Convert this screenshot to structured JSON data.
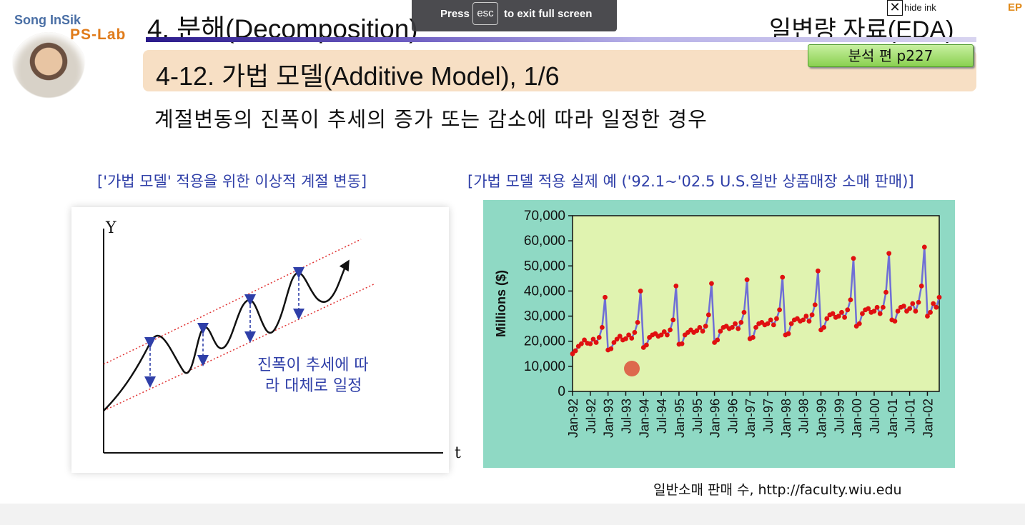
{
  "logo": {
    "name": "Song InSik",
    "lab": "PS-Lab"
  },
  "header": {
    "title": "4. 분해(Decomposition)",
    "right_title": "일변량 자료(EDA)",
    "section_title": "4-12. 가법 모델(Additive Model), 1/6",
    "page_ref": "분석 편 p227"
  },
  "subtitle": "계절변동의 진폭이 추세의 증가 또는 감소에 따라 일정한 경우",
  "left_panel": {
    "caption": "['가법 모델' 적용을 위한 이상적 계절 변동]",
    "y_label": "Y",
    "x_label": "t",
    "annotation_line1": "진폭이 추세에 따",
    "annotation_line2": "라 대체로 일정"
  },
  "right_panel": {
    "caption": "[가법 모델 적용 실제 예 ('92.1~'02.5 U.S.일반 상품매장 소매 판매)]"
  },
  "chart_data": {
    "type": "line",
    "ylabel": "Millions ($)",
    "xlabel": "",
    "ylim": [
      0,
      70000
    ],
    "yticks": [
      "0",
      "10,000",
      "20,000",
      "30,000",
      "40,000",
      "50,000",
      "60,000",
      "70,000"
    ],
    "xticks": [
      "Jan-92",
      "Jul-92",
      "Jan-93",
      "Jul-93",
      "Jan-94",
      "Jul-94",
      "Jan-95",
      "Jul-95",
      "Jan-96",
      "Jul-96",
      "Jan-97",
      "Jul-97",
      "Jan-98",
      "Jul-98",
      "Jan-99",
      "Jul-99",
      "Jan-00",
      "Jul-00",
      "Jan-01",
      "Jul-01",
      "Jan-02"
    ],
    "grid": false,
    "colors": {
      "line": "#6f6fd6",
      "marker": "#e01010",
      "plot_bg": "#e0f3b0",
      "frame_bg": "#8fd9c4"
    },
    "series": [
      {
        "start": "Jan-92",
        "frequency": "monthly",
        "values": [
          15000,
          16200,
          18000,
          19000,
          20500,
          19200,
          19000,
          20800,
          19500,
          21500,
          25500,
          37500,
          16500,
          17000,
          19500,
          20800,
          22000,
          20500,
          21000,
          22500,
          21200,
          23500,
          27500,
          40000,
          17500,
          18500,
          21500,
          22500,
          23000,
          22000,
          22500,
          23800,
          22500,
          24500,
          28500,
          42000,
          18800,
          19000,
          22500,
          23500,
          24500,
          23500,
          24200,
          25500,
          24000,
          26000,
          30500,
          43000,
          19500,
          20500,
          24000,
          25500,
          26000,
          25000,
          25500,
          27000,
          25000,
          27500,
          31500,
          44500,
          21000,
          21500,
          25500,
          27000,
          27500,
          26500,
          27000,
          28500,
          26500,
          29000,
          32500,
          45500,
          22500,
          23000,
          27000,
          28500,
          29000,
          28000,
          28500,
          30000,
          28000,
          30500,
          34500,
          48000,
          24500,
          25500,
          29000,
          30500,
          31000,
          29500,
          30000,
          31500,
          29500,
          32500,
          36500,
          53000,
          26000,
          27000,
          31000,
          32500,
          33000,
          31500,
          32000,
          33500,
          31000,
          33500,
          39500,
          55000,
          28500,
          28000,
          32000,
          33500,
          34000,
          32000,
          33000,
          35000,
          32000,
          35500,
          42000,
          57500,
          30000,
          31500,
          35000,
          33500,
          37500
        ]
      }
    ]
  },
  "source_note": "일반소매 판매 수, http://faculty.wiu.edu",
  "fullscreen_banner": {
    "pre": "Press",
    "key": "esc",
    "post": "to exit full screen"
  },
  "ink_control": {
    "close": "✕",
    "label": "hide ink"
  },
  "corner_text": "EP"
}
